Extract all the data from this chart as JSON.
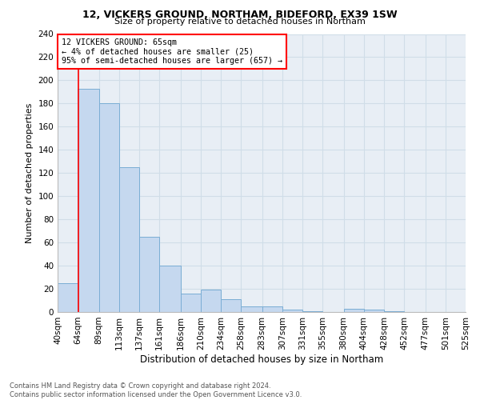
{
  "title1": "12, VICKERS GROUND, NORTHAM, BIDEFORD, EX39 1SW",
  "title2": "Size of property relative to detached houses in Northam",
  "xlabel": "Distribution of detached houses by size in Northam",
  "ylabel": "Number of detached properties",
  "bin_labels": [
    "40sqm",
    "64sqm",
    "89sqm",
    "113sqm",
    "137sqm",
    "161sqm",
    "186sqm",
    "210sqm",
    "234sqm",
    "258sqm",
    "283sqm",
    "307sqm",
    "331sqm",
    "355sqm",
    "380sqm",
    "404sqm",
    "428sqm",
    "452sqm",
    "477sqm",
    "501sqm",
    "525sqm"
  ],
  "bar_heights": [
    25,
    193,
    180,
    125,
    65,
    40,
    16,
    19,
    11,
    5,
    5,
    2,
    1,
    0,
    3,
    2,
    1,
    0,
    0,
    0
  ],
  "bar_color": "#c5d8ef",
  "bar_edge_color": "#7aadd4",
  "grid_color": "#d0dde8",
  "background_color": "#e8eef5",
  "red_line_x": 65,
  "annotation_title": "12 VICKERS GROUND: 65sqm",
  "annotation_line1": "← 4% of detached houses are smaller (25)",
  "annotation_line2": "95% of semi-detached houses are larger (657) →",
  "footer1": "Contains HM Land Registry data © Crown copyright and database right 2024.",
  "footer2": "Contains public sector information licensed under the Open Government Licence v3.0.",
  "ylim": [
    0,
    240
  ],
  "yticks": [
    0,
    20,
    40,
    60,
    80,
    100,
    120,
    140,
    160,
    180,
    200,
    220,
    240
  ]
}
